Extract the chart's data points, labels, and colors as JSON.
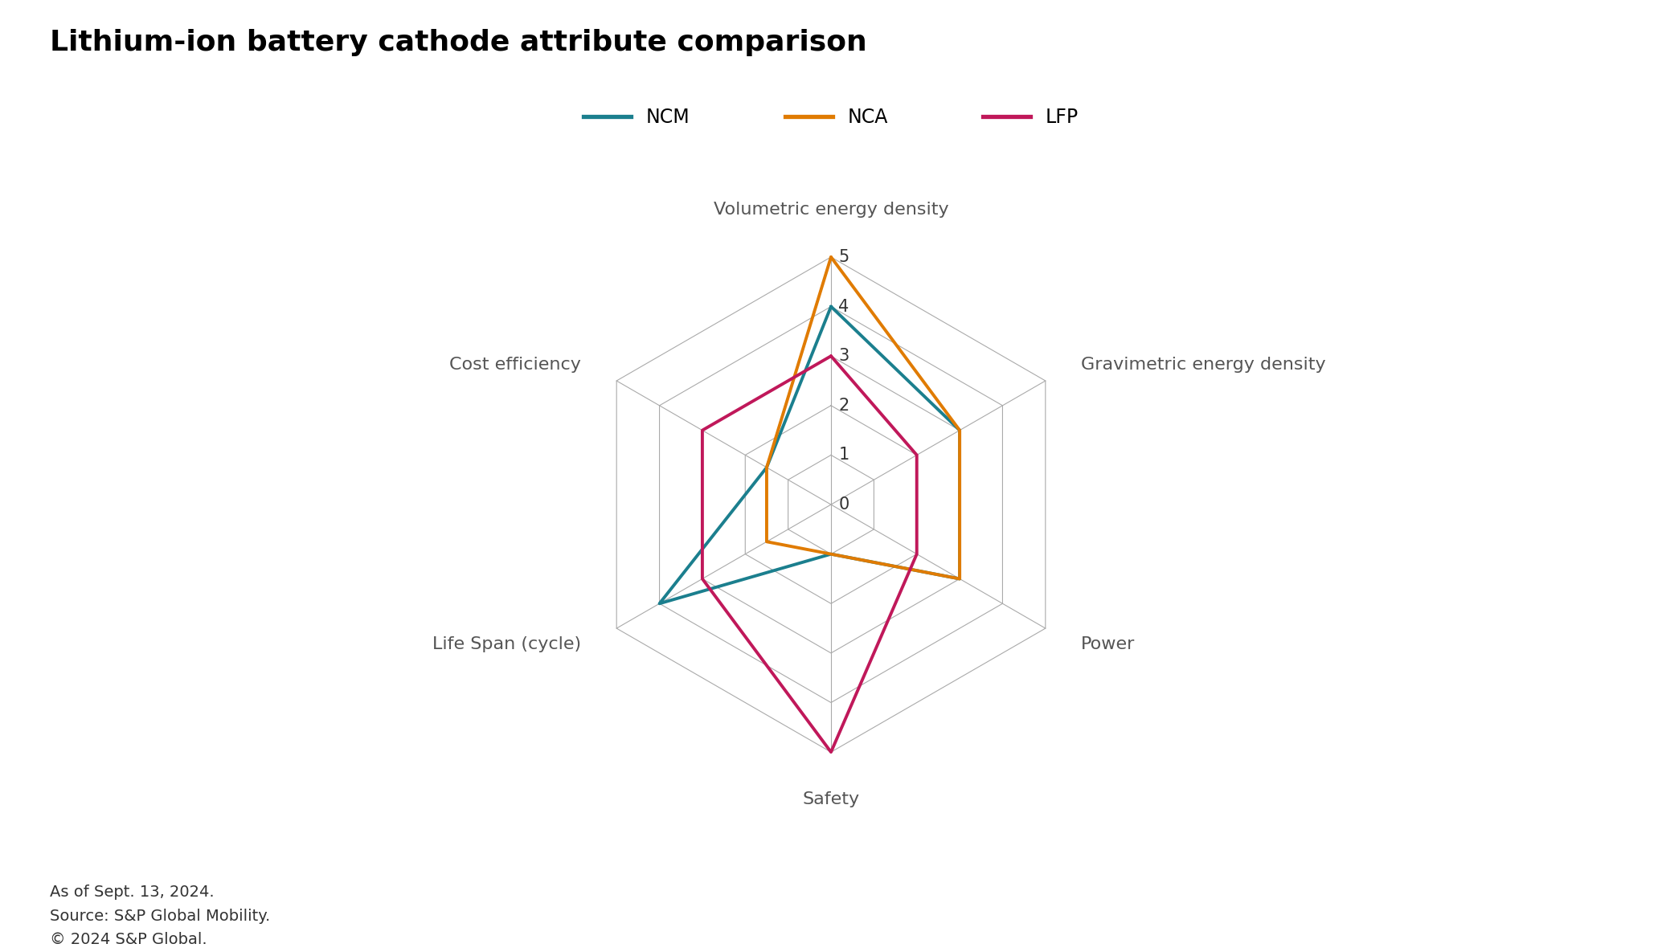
{
  "title": "Lithium-ion battery cathode attribute comparison",
  "categories": [
    "Volumetric energy density",
    "Gravimetric energy density",
    "Power",
    "Safety",
    "Life Span (cycle)",
    "Cost efficiency"
  ],
  "series": [
    {
      "name": "NCM",
      "color": "#1b7f8e",
      "values": [
        4,
        3,
        3,
        1,
        4,
        1.5
      ]
    },
    {
      "name": "NCA",
      "color": "#e07b00",
      "values": [
        5,
        3,
        3,
        1,
        1.5,
        1.5
      ]
    },
    {
      "name": "LFP",
      "color": "#c0185a",
      "values": [
        3,
        2,
        2,
        5,
        3,
        3
      ]
    }
  ],
  "rmin": 0,
  "rmax": 5,
  "rticks": [
    0,
    1,
    2,
    3,
    4,
    5
  ],
  "line_width": 2.8,
  "grid_color": "#aaaaaa",
  "background_color": "#ffffff",
  "title_fontsize": 26,
  "label_fontsize": 16,
  "tick_fontsize": 15,
  "legend_fontsize": 17,
  "footnote": "As of Sept. 13, 2024.\nSource: S&P Global Mobility.\n© 2024 S&P Global.",
  "footnote_fontsize": 14
}
